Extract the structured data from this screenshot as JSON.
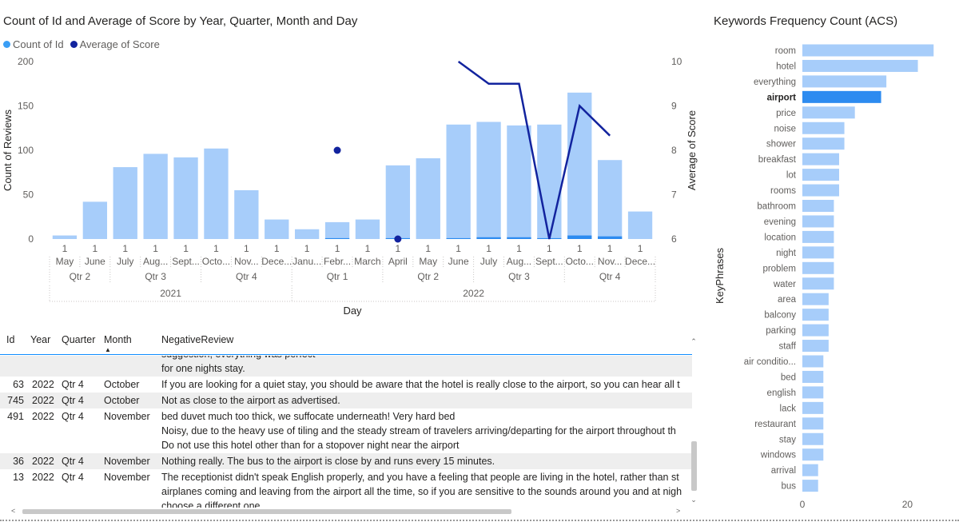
{
  "combo_chart": {
    "title": "Count of Id and Average of Score by Year, Quarter, Month and Day",
    "legend": [
      {
        "label": "Count of Id",
        "color": "#3a9ef5"
      },
      {
        "label": "Average of Score",
        "color": "#12239e"
      }
    ],
    "colors": {
      "bar": "#a7cdfa",
      "bar_highlight": "#2d8bf0",
      "line": "#12239e",
      "axis_text": "#605e5c"
    }
  },
  "keyword_chart": {
    "title": "Keywords Frequency Count (ACS)",
    "colors": {
      "bar": "#a7cdfa",
      "bar_selected": "#2d8bf0"
    }
  },
  "chart_data": [
    {
      "type": "bar+line",
      "title": "Count of Id and Average of Score by Year, Quarter, Month and Day",
      "xlabel": "Day",
      "ylabel": "Count of Reviews",
      "y2label": "Average of Score",
      "ylim": [
        0,
        200
      ],
      "y2lim": [
        6,
        10
      ],
      "yticks": [
        0,
        50,
        100,
        150,
        200
      ],
      "y2ticks": [
        6,
        7,
        8,
        9,
        10
      ],
      "day_labels": [
        "1",
        "1",
        "1",
        "1",
        "1",
        "1",
        "1",
        "1",
        "1",
        "1",
        "1",
        "1",
        "1",
        "1",
        "1",
        "1",
        "1",
        "1",
        "1",
        "1"
      ],
      "categories": [
        "May",
        "June",
        "July",
        "Aug...",
        "Sept...",
        "Octo...",
        "Nov...",
        "Dece...",
        "Janu...",
        "Febr...",
        "March",
        "April",
        "May",
        "June",
        "July",
        "Aug...",
        "Sept...",
        "Octo...",
        "Nov...",
        "Dece..."
      ],
      "quarters": [
        {
          "label": "Qtr 2",
          "span": 2
        },
        {
          "label": "Qtr 3",
          "span": 3
        },
        {
          "label": "Qtr 4",
          "span": 3
        },
        {
          "label": "Qtr 1",
          "span": 3
        },
        {
          "label": "Qtr 2",
          "span": 3
        },
        {
          "label": "Qtr 3",
          "span": 3
        },
        {
          "label": "Qtr 4",
          "span": 3
        }
      ],
      "years": [
        {
          "label": "2021",
          "span": 8
        },
        {
          "label": "2022",
          "span": 12
        }
      ],
      "series": [
        {
          "name": "Count of Id",
          "values": [
            4,
            42,
            81,
            96,
            92,
            102,
            55,
            22,
            11,
            19,
            22,
            83,
            91,
            129,
            132,
            128,
            129,
            165,
            89,
            31
          ]
        },
        {
          "name": "Count of Id (filtered)",
          "values": [
            0,
            0,
            0,
            0,
            0,
            0,
            0,
            0,
            0,
            1,
            0,
            1,
            0,
            1,
            2,
            2,
            1,
            4,
            3,
            0
          ]
        },
        {
          "name": "Average of Score",
          "values": [
            null,
            null,
            null,
            null,
            null,
            null,
            null,
            null,
            null,
            8,
            null,
            6,
            null,
            10,
            9.5,
            9.5,
            6,
            9,
            8.33,
            null
          ]
        }
      ]
    },
    {
      "type": "bar",
      "orientation": "horizontal",
      "title": "Keywords Frequency Count (ACS)",
      "ylabel": "KeyPhrases",
      "xlim": [
        0,
        27
      ],
      "xticks": [
        0,
        20
      ],
      "selected": "airport",
      "categories": [
        "room",
        "hotel",
        "everything",
        "airport",
        "price",
        "noise",
        "shower",
        "breakfast",
        "lot",
        "rooms",
        "bathroom",
        "evening",
        "location",
        "night",
        "problem",
        "water",
        "area",
        "balcony",
        "parking",
        "staff",
        "air conditio...",
        "bed",
        "english",
        "lack",
        "restaurant",
        "stay",
        "windows",
        "arrival",
        "bus"
      ],
      "values": [
        25,
        22,
        16,
        15,
        10,
        8,
        8,
        7,
        7,
        7,
        6,
        6,
        6,
        6,
        6,
        6,
        5,
        5,
        5,
        5,
        4,
        4,
        4,
        4,
        4,
        4,
        4,
        3,
        3
      ]
    }
  ],
  "table": {
    "columns": [
      "Id",
      "Year",
      "Quarter",
      "Month",
      "NegativeReview"
    ],
    "rows": [
      {
        "id": "",
        "year": "",
        "quarter": "",
        "month": "",
        "review": "suggestion, everything was perfect\nfor one nights stay.",
        "shaded": true
      },
      {
        "id": "63",
        "year": "2022",
        "quarter": "Qtr 4",
        "month": "October",
        "review": "If you are looking for a quiet stay, you should be aware that the hotel is really close to the airport, so you can hear all t",
        "shaded": false
      },
      {
        "id": "745",
        "year": "2022",
        "quarter": "Qtr 4",
        "month": "October",
        "review": "Not as close to the airport as advertised.",
        "shaded": true
      },
      {
        "id": "491",
        "year": "2022",
        "quarter": "Qtr 4",
        "month": "November",
        "review": "bed duvet much too thick, we suffocate underneath! Very hard bed\nNoisy, due to the heavy use of tiling and the steady stream of travelers arriving/departing for the airport throughout th\nDo not use this hotel other than for a stopover night near the airport",
        "shaded": false
      },
      {
        "id": "36",
        "year": "2022",
        "quarter": "Qtr 4",
        "month": "November",
        "review": "Nothing really. The bus to the airport is close by and runs every 15 minutes.",
        "shaded": true
      },
      {
        "id": "13",
        "year": "2022",
        "quarter": "Qtr 4",
        "month": "November",
        "review": "The receptionist didn't speak English properly, and you have a feeling that people are living in the hotel, rather than st\nairplanes coming and leaving from the airport all the time, so if you are sensitive to the sounds around you and at nigh\nchoose a different one.",
        "shaded": false
      }
    ]
  }
}
